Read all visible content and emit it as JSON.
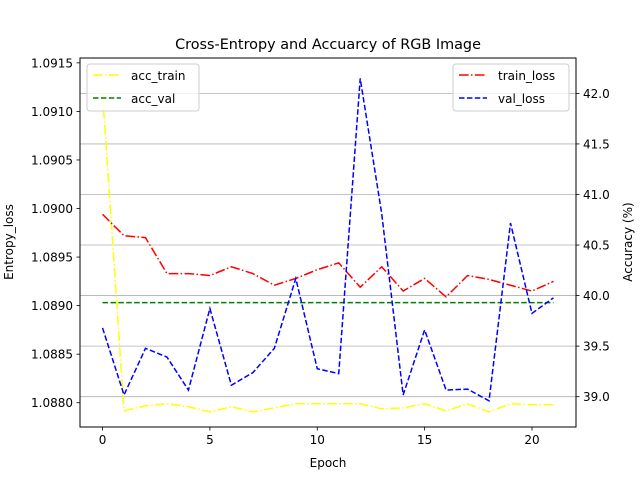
{
  "chart_data": {
    "type": "line",
    "title": "Cross-Entropy and Accuarcy of RGB Image",
    "xlabel": "Epoch",
    "ylabel_left": "Entropy_loss",
    "ylabel_right": "Accuracy (%)",
    "x": [
      0,
      1,
      2,
      3,
      4,
      5,
      6,
      7,
      8,
      9,
      10,
      11,
      12,
      13,
      14,
      15,
      16,
      17,
      18,
      19,
      20,
      21
    ],
    "xlim": [
      -1.05,
      22.05
    ],
    "xticks": [
      0,
      5,
      10,
      15,
      20
    ],
    "ylim_left": [
      1.08775,
      1.09155
    ],
    "yticks_left": [
      1.088,
      1.0885,
      1.089,
      1.0895,
      1.09,
      1.0905,
      1.091,
      1.0915
    ],
    "yticks_left_labels": [
      "1.0880",
      "1.0885",
      "1.0890",
      "1.0895",
      "1.0900",
      "1.0905",
      "1.0910",
      "1.0915"
    ],
    "ylim_right": [
      38.7,
      42.35
    ],
    "yticks_right": [
      39.0,
      39.5,
      40.0,
      40.5,
      41.0,
      41.5,
      42.0
    ],
    "yticks_right_labels": [
      "39.0",
      "39.5",
      "40.0",
      "40.5",
      "41.0",
      "41.5",
      "42.0"
    ],
    "grid": "horizontal lines at right-axis ticks",
    "series_left": [
      {
        "name": "train_loss",
        "color": "#ff0000",
        "dash": "dashdot",
        "values": [
          1.08994,
          1.08972,
          1.0897,
          1.08933,
          1.08933,
          1.08931,
          1.0894,
          1.08933,
          1.08921,
          1.08928,
          1.08937,
          1.08944,
          1.08919,
          1.0894,
          1.08915,
          1.08928,
          1.08909,
          1.08931,
          1.08927,
          1.08921,
          1.08915,
          1.08925
        ]
      },
      {
        "name": "val_loss",
        "color": "#0000ff",
        "dash": "dashed",
        "values": [
          1.08877,
          1.08808,
          1.08856,
          1.08847,
          1.08813,
          1.08897,
          1.08818,
          1.08831,
          1.08856,
          1.08928,
          1.08835,
          1.0883,
          1.09134,
          1.08995,
          1.08808,
          1.08875,
          1.08813,
          1.08814,
          1.08802,
          1.08985,
          1.08892,
          1.08908
        ]
      }
    ],
    "series_right": [
      {
        "name": "acc_train",
        "color": "#ffff00",
        "dash": "dashdot",
        "values": [
          42.0,
          38.86,
          38.91,
          38.93,
          38.9,
          38.85,
          38.9,
          38.85,
          38.89,
          38.93,
          38.93,
          38.93,
          38.93,
          38.88,
          38.89,
          38.93,
          38.86,
          38.93,
          38.85,
          38.93,
          38.92,
          38.92
        ]
      },
      {
        "name": "acc_val",
        "color": "#008000",
        "dash": "dashed",
        "values": [
          39.93,
          39.93,
          39.93,
          39.93,
          39.93,
          39.93,
          39.93,
          39.93,
          39.93,
          39.93,
          39.93,
          39.93,
          39.93,
          39.93,
          39.93,
          39.93,
          39.93,
          39.93,
          39.93,
          39.93,
          39.93,
          39.93
        ]
      }
    ],
    "legend_left": {
      "placement": "upper-left",
      "entries": [
        "acc_train",
        "acc_val"
      ]
    },
    "legend_right": {
      "placement": "upper-right",
      "entries": [
        "train_loss",
        "val_loss"
      ]
    }
  }
}
